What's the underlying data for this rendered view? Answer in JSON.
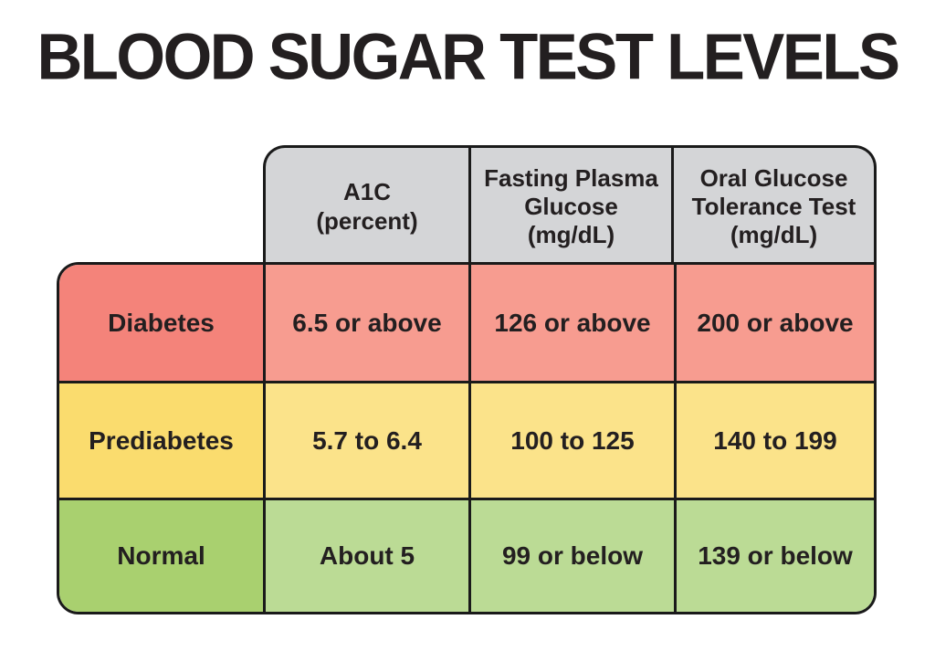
{
  "page": {
    "title": "BLOOD SUGAR TEST LEVELS",
    "background": "#ffffff"
  },
  "colors": {
    "border": "#1a1a1a",
    "text": "#231f20",
    "header_bg": "#d4d5d7",
    "diabetes_label_bg": "#f4837a",
    "diabetes_value_bg": "#f79c90",
    "prediabetes_label_bg": "#fadc6e",
    "prediabetes_value_bg": "#fbe38a",
    "normal_label_bg": "#a9d06f",
    "normal_value_bg": "#bbdb95"
  },
  "table": {
    "column_headers": [
      "A1C\n(percent)",
      "Fasting Plasma\nGlucose\n(mg/dL)",
      "Oral Glucose\nTolerance Test\n(mg/dL)"
    ],
    "rows": [
      {
        "label": "Diabetes",
        "values": [
          "6.5 or above",
          "126 or above",
          "200 or above"
        ]
      },
      {
        "label": "Prediabetes",
        "values": [
          "5.7 to 6.4",
          "100 to 125",
          "140 to 199"
        ]
      },
      {
        "label": "Normal",
        "values": [
          "About 5",
          "99 or below",
          "139 or below"
        ]
      }
    ]
  },
  "chart_data": {
    "type": "table",
    "title": "BLOOD SUGAR TEST LEVELS",
    "columns": [
      "",
      "A1C (percent)",
      "Fasting Plasma Glucose (mg/dL)",
      "Oral Glucose Tolerance Test (mg/dL)"
    ],
    "rows": [
      [
        "Diabetes",
        "6.5 or above",
        "126 or above",
        "200 or above"
      ],
      [
        "Prediabetes",
        "5.7 to 6.4",
        "100 to 125",
        "140 to 199"
      ],
      [
        "Normal",
        "About 5",
        "99 or below",
        "139 or below"
      ]
    ],
    "row_status_colors": {
      "Diabetes": "#f4837a",
      "Prediabetes": "#fadc6e",
      "Normal": "#a9d06f"
    }
  }
}
